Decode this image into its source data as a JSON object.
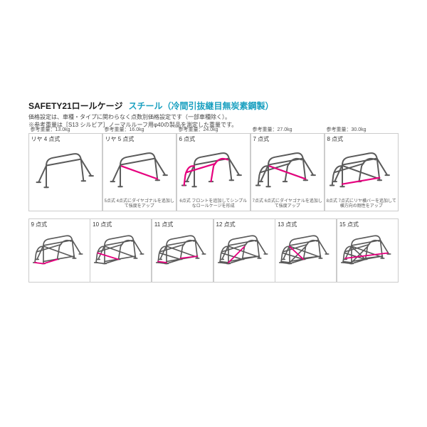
{
  "colors": {
    "title_accent": "#1aa0c0",
    "cage_main": "#5a5a5a",
    "cage_accent": "#e6007e",
    "border": "#cccccc"
  },
  "header": {
    "main_title": "SAFETY21ロールケージ",
    "sub_title": "スチール（冷間引抜継目無炭素鋼製）",
    "desc1": "価格設定は、車種・タイプに関わらなく点数別価格設定です（一部車種除く）。",
    "desc2": "※参考重量は［S13 シルビア］ノーマルルーフ用φ40の製品を測定した重量です。"
  },
  "row_top": [
    {
      "weight": "参考重量：13.0kg",
      "label": "リヤ 4 点式",
      "caption": "",
      "type": "4"
    },
    {
      "weight": "参考重量：16.0kg",
      "label": "リヤ 5 点式",
      "caption": "5点式 4点式にダイヤゴナルを追加して強度をアップ",
      "type": "5"
    },
    {
      "weight": "参考重量：24.0kg",
      "label": "6 点式",
      "caption": "6点式 フロントを追加してシンプルなロールケージを形成",
      "type": "6"
    },
    {
      "weight": "参考重量：27.0kg",
      "label": "7 点式",
      "caption": "7点式 6点式にダイヤゴナルを追加して強度アップ",
      "type": "7"
    },
    {
      "weight": "参考重量：30.0kg",
      "label": "8 点式",
      "caption": "8点式 7点式にリヤ横バーを追加して横方向の剛性をアップ",
      "type": "8"
    }
  ],
  "row_bot": [
    {
      "label": "9 点式",
      "type": "9"
    },
    {
      "label": "10 点式",
      "type": "10"
    },
    {
      "label": "11 点式",
      "type": "11"
    },
    {
      "label": "12 点式",
      "type": "12"
    },
    {
      "label": "13 点式",
      "type": "13"
    },
    {
      "label": "15 点式",
      "type": "15"
    }
  ],
  "render": {
    "main_stroke_width": 2.2,
    "accent_stroke_width": 2.4
  }
}
